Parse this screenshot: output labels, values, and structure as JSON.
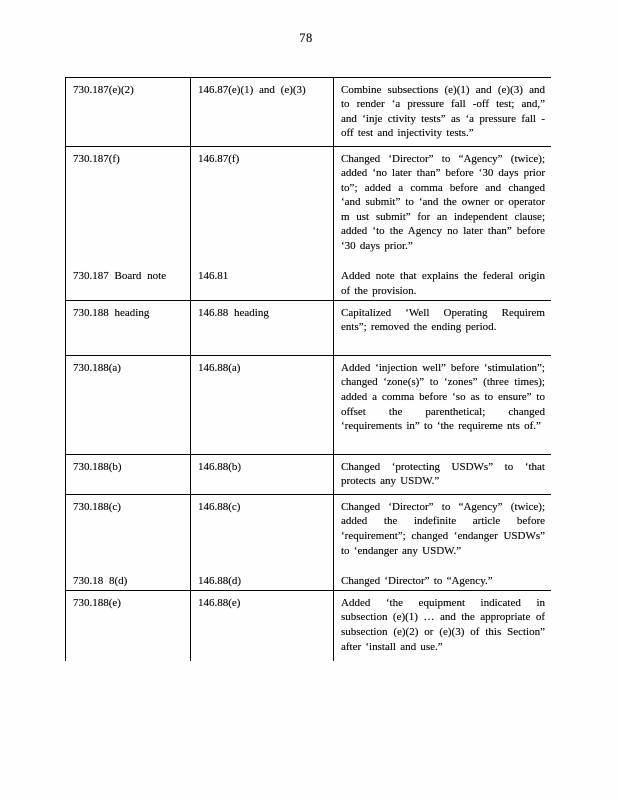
{
  "page": {
    "number": "78"
  },
  "table": {
    "rows": [
      {
        "entries": [
          {
            "board_section": "730.187(e)(2)",
            "federal_section": "146.87(e)(1) and (e)(3)",
            "change_description": "Combine subsections (e)(1) and (e)(3) and to render ‘a pressure fall -off test; and,” and ‘inje ctivity tests” as ‘a pressure fall - off test and injectivity tests.”"
          }
        ]
      },
      {
        "entries": [
          {
            "board_section": "730.187(f)",
            "federal_section": "146.87(f)",
            "change_description": "Changed ‘Director” to “Agency” (twice); added ‘no later than” before ‘30 days prior to”; added a comma before and changed ‘and submit” to ‘and the owner or operator m ust submit” for an independent clause; added ‘to the Agency no later than” before ‘30 days prior.”"
          },
          {
            "board_section": "730.187 Board note",
            "federal_section": "146.81",
            "change_description": "Added note that explains the federal origin of the provision."
          }
        ]
      },
      {
        "entries": [
          {
            "board_section": "730.188 heading",
            "federal_section": "146.88 heading",
            "change_description": "Capitalized ‘Well Operating Requirem ents”; removed the ending period."
          }
        ]
      },
      {
        "entries": [
          {
            "board_section": "730.188(a)",
            "federal_section": "146.88(a)",
            "change_description": "Added ‘injection well” before ‘stimulation”; changed ‘zone(s)” to ‘zones” (three times); added a comma before ‘so as to ensure” to offset the parenthetical; changed ‘requirements in” to ‘the requireme nts of.”"
          }
        ]
      },
      {
        "entries": [
          {
            "board_section": "730.188(b)",
            "federal_section": "146.88(b)",
            "change_description": "Changed ‘protecting USDWs” to ‘that protects any USDW.”"
          }
        ]
      },
      {
        "entries": [
          {
            "board_section": "730.188(c)",
            "federal_section": "146.88(c)",
            "change_description": "Changed ‘Director” to “Agency” (twice); added the indefinite article before ‘requirement”; changed ‘endanger USDWs” to ‘endanger any USDW.”"
          },
          {
            "board_section": "730.18 8(d)",
            "federal_section": "146.88(d)",
            "change_description": "Changed ‘Director” to “Agency.”"
          }
        ]
      },
      {
        "entries": [
          {
            "board_section": "730.188(e)",
            "federal_section": "146.88(e)",
            "change_description": "Added ‘the equipment indicated in subsection (e)(1) … and the appropriate of subsection (e)(2) or (e)(3) of this Section” after ‘install and use.”"
          }
        ]
      }
    ]
  }
}
